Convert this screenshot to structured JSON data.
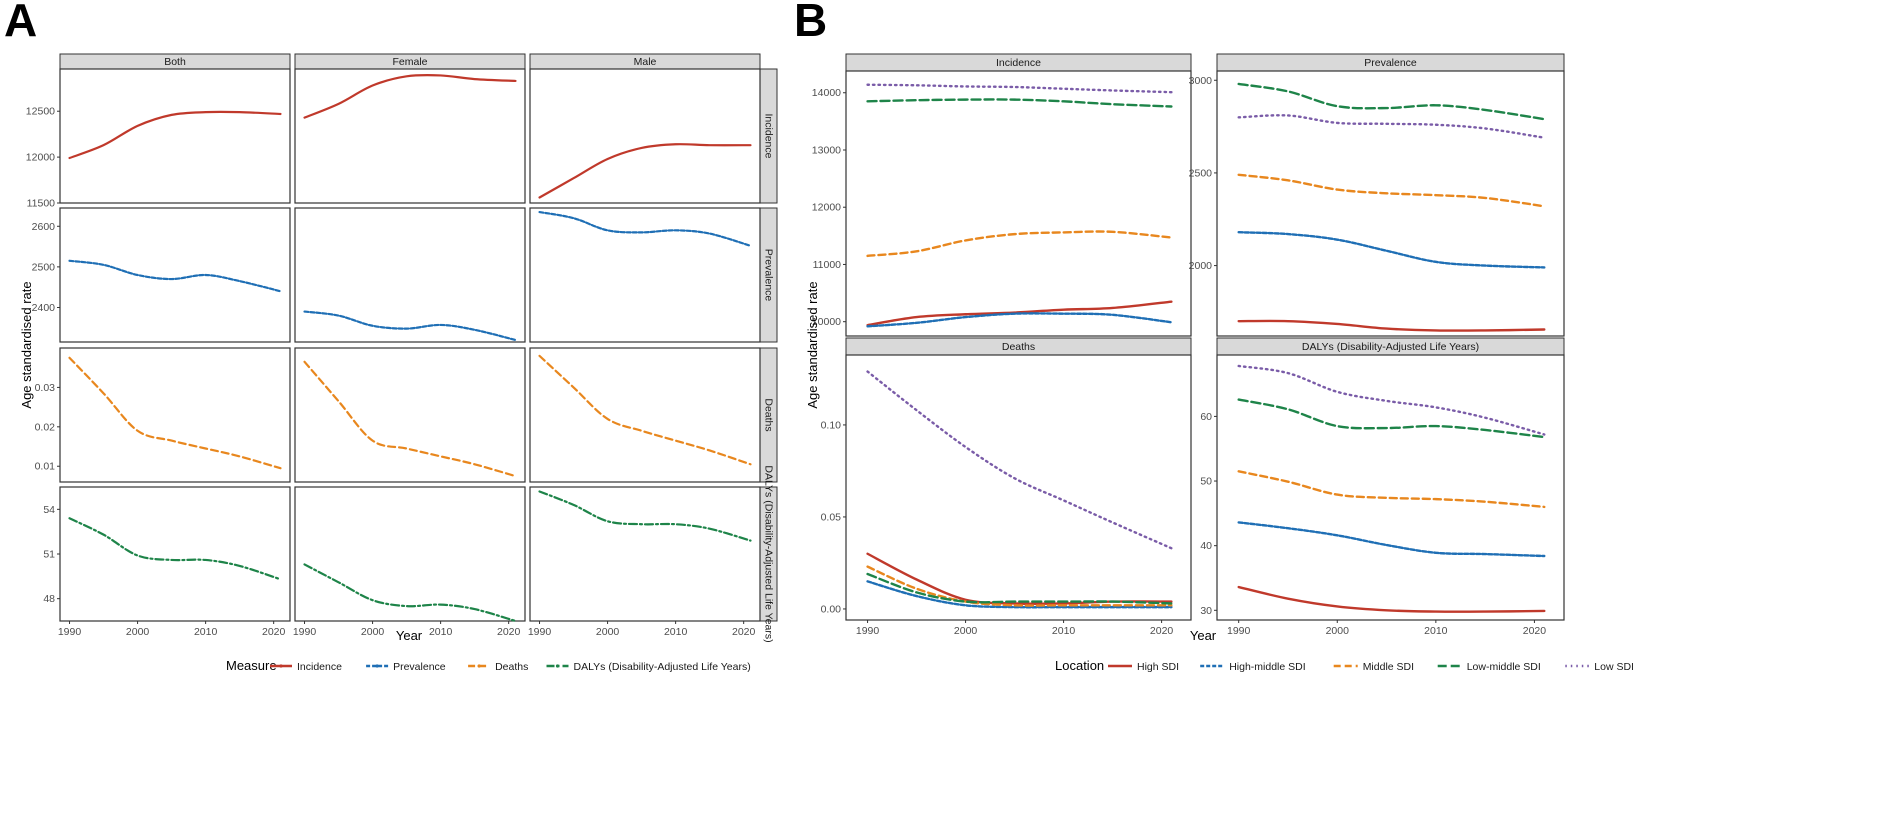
{
  "figure": {
    "label_a": "A",
    "label_b": "B"
  },
  "colors": {
    "incidence": "#c0392b",
    "prevalence": "#1f6fb5",
    "deaths": "#e8871e",
    "dalys": "#1e8449",
    "high_sdi": "#c0392b",
    "high_middle_sdi": "#1f6fb5",
    "middle_sdi": "#e8871e",
    "low_middle_sdi": "#1e8449",
    "low_sdi": "#7a5ca8"
  },
  "chart_data": [
    {
      "type": "line",
      "id": "A",
      "title": "A",
      "xlabel": "Year",
      "ylabel": "Age standardised rate",
      "x_ticks": [
        1990,
        2000,
        2010,
        2020
      ],
      "columns": [
        "Both",
        "Female",
        "Male"
      ],
      "rows": [
        "Incidence",
        "Prevalence",
        "Deaths",
        "DALYs (Disability-Adjusted Life Years)"
      ],
      "legend_title": "Measure",
      "legend": [
        {
          "key": "incidence",
          "label": "Incidence"
        },
        {
          "key": "prevalence",
          "label": "Prevalence"
        },
        {
          "key": "deaths",
          "label": "Deaths"
        },
        {
          "key": "dalys",
          "label": "DALYs (Disability-Adjusted Life Years)"
        }
      ],
      "x": [
        1990,
        1995,
        2000,
        2005,
        2010,
        2015,
        2021
      ],
      "panels": [
        {
          "row": "Incidence",
          "ylim": [
            11500,
            12960
          ],
          "yticks": [
            11500,
            12000,
            12500
          ],
          "series": [
            {
              "measure": "incidence",
              "column": "Both",
              "values": [
                11990,
                12130,
                12340,
                12460,
                12490,
                12490,
                12470
              ]
            },
            {
              "measure": "incidence",
              "column": "Female",
              "values": [
                12430,
                12580,
                12780,
                12880,
                12890,
                12850,
                12830
              ]
            },
            {
              "measure": "incidence",
              "column": "Male",
              "values": [
                11560,
                11770,
                11980,
                12100,
                12140,
                12130,
                12130
              ]
            }
          ]
        },
        {
          "row": "Prevalence",
          "ylim": [
            2315,
            2645
          ],
          "yticks": [
            2400,
            2500,
            2600
          ],
          "series": [
            {
              "measure": "prevalence",
              "column": "Both",
              "values": [
                2515,
                2505,
                2480,
                2470,
                2480,
                2465,
                2440
              ]
            },
            {
              "measure": "prevalence",
              "column": "Female",
              "values": [
                2390,
                2380,
                2355,
                2348,
                2357,
                2345,
                2320
              ]
            },
            {
              "measure": "prevalence",
              "column": "Male",
              "values": [
                2635,
                2620,
                2590,
                2585,
                2590,
                2582,
                2552
              ]
            }
          ]
        },
        {
          "row": "Deaths",
          "ylim": [
            0.006,
            0.04
          ],
          "yticks": [
            0.01,
            0.02,
            0.03
          ],
          "series": [
            {
              "measure": "deaths",
              "column": "Both",
              "values": [
                0.0375,
                0.0285,
                0.019,
                0.0165,
                0.0145,
                0.0125,
                0.0095
              ]
            },
            {
              "measure": "deaths",
              "column": "Female",
              "values": [
                0.0365,
                0.0265,
                0.0165,
                0.0145,
                0.0125,
                0.0105,
                0.0075
              ]
            },
            {
              "measure": "deaths",
              "column": "Male",
              "values": [
                0.038,
                0.03,
                0.022,
                0.019,
                0.0165,
                0.014,
                0.0105
              ]
            }
          ]
        },
        {
          "row": "DALYs (Disability-Adjusted Life Years)",
          "ylim": [
            46.5,
            55.5
          ],
          "yticks": [
            48,
            51,
            54
          ],
          "series": [
            {
              "measure": "dalys",
              "column": "Both",
              "values": [
                53.4,
                52.3,
                50.9,
                50.6,
                50.6,
                50.2,
                49.3
              ]
            },
            {
              "measure": "dalys",
              "column": "Female",
              "values": [
                50.3,
                49.1,
                47.9,
                47.5,
                47.6,
                47.3,
                46.5
              ]
            },
            {
              "measure": "dalys",
              "column": "Male",
              "values": [
                55.2,
                54.3,
                53.2,
                53.0,
                53.0,
                52.7,
                51.9
              ]
            }
          ]
        }
      ]
    },
    {
      "type": "line",
      "id": "B",
      "title": "B",
      "xlabel": "Year",
      "ylabel": "Age standardised rate",
      "x_ticks": [
        1990,
        2000,
        2010,
        2020
      ],
      "legend_title": "Location",
      "legend": [
        {
          "key": "high_sdi",
          "label": "High SDI"
        },
        {
          "key": "high_middle_sdi",
          "label": "High-middle SDI"
        },
        {
          "key": "middle_sdi",
          "label": "Middle SDI"
        },
        {
          "key": "low_middle_sdi",
          "label": "Low-middle SDI"
        },
        {
          "key": "low_sdi",
          "label": "Low SDI"
        }
      ],
      "x": [
        1990,
        1995,
        2000,
        2005,
        2010,
        2015,
        2021
      ],
      "panels": [
        {
          "title": "Incidence",
          "ylim": [
            9750,
            14380
          ],
          "yticks": [
            10000,
            11000,
            12000,
            13000,
            14000
          ],
          "series": [
            {
              "location": "high_sdi",
              "values": [
                9940,
                10080,
                10130,
                10160,
                10210,
                10240,
                10350
              ]
            },
            {
              "location": "high_middle_sdi",
              "values": [
                9920,
                9980,
                10080,
                10140,
                10140,
                10120,
                9990
              ]
            },
            {
              "location": "middle_sdi",
              "values": [
                11150,
                11230,
                11420,
                11530,
                11560,
                11570,
                11470
              ]
            },
            {
              "location": "low_middle_sdi",
              "values": [
                13850,
                13870,
                13880,
                13880,
                13850,
                13800,
                13760
              ]
            },
            {
              "location": "low_sdi",
              "values": [
                14140,
                14130,
                14110,
                14100,
                14070,
                14040,
                14010
              ]
            }
          ]
        },
        {
          "title": "Prevalence",
          "ylim": [
            1620,
            3050
          ],
          "yticks": [
            2000,
            2500,
            3000
          ],
          "series": [
            {
              "location": "high_sdi",
              "values": [
                1700,
                1700,
                1685,
                1660,
                1650,
                1650,
                1655
              ]
            },
            {
              "location": "high_middle_sdi",
              "values": [
                2180,
                2170,
                2140,
                2080,
                2020,
                2000,
                1990
              ]
            },
            {
              "location": "middle_sdi",
              "values": [
                2490,
                2460,
                2410,
                2390,
                2380,
                2365,
                2320
              ]
            },
            {
              "location": "low_middle_sdi",
              "values": [
                2980,
                2940,
                2860,
                2850,
                2865,
                2840,
                2790
              ]
            },
            {
              "location": "low_sdi",
              "values": [
                2800,
                2810,
                2770,
                2765,
                2760,
                2740,
                2690
              ]
            }
          ]
        },
        {
          "title": "Deaths",
          "ylim": [
            -0.006,
            0.138
          ],
          "yticks": [
            0.0,
            0.05,
            0.1
          ],
          "series": [
            {
              "location": "high_sdi",
              "values": [
                0.03,
                0.016,
                0.005,
                0.003,
                0.003,
                0.004,
                0.004
              ]
            },
            {
              "location": "high_middle_sdi",
              "values": [
                0.015,
                0.007,
                0.002,
                0.001,
                0.001,
                0.001,
                0.001
              ]
            },
            {
              "location": "middle_sdi",
              "values": [
                0.023,
                0.011,
                0.004,
                0.002,
                0.002,
                0.002,
                0.002
              ]
            },
            {
              "location": "low_middle_sdi",
              "values": [
                0.019,
                0.009,
                0.004,
                0.004,
                0.004,
                0.004,
                0.003
              ]
            },
            {
              "location": "low_sdi",
              "values": [
                0.129,
                0.108,
                0.088,
                0.071,
                0.059,
                0.047,
                0.033
              ]
            }
          ]
        },
        {
          "title": "DALYs (Disability-Adjusted Life Years)",
          "ylim": [
            28.5,
            69.5
          ],
          "yticks": [
            30,
            40,
            50,
            60
          ],
          "series": [
            {
              "location": "high_sdi",
              "values": [
                33.6,
                31.8,
                30.6,
                30.0,
                29.8,
                29.8,
                29.9
              ]
            },
            {
              "location": "high_middle_sdi",
              "values": [
                43.6,
                42.7,
                41.6,
                40.1,
                38.9,
                38.7,
                38.4
              ]
            },
            {
              "location": "middle_sdi",
              "values": [
                51.5,
                49.9,
                47.9,
                47.4,
                47.2,
                46.8,
                46.0
              ]
            },
            {
              "location": "low_middle_sdi",
              "values": [
                62.6,
                61.1,
                58.5,
                58.2,
                58.5,
                57.9,
                56.8
              ]
            },
            {
              "location": "low_sdi",
              "values": [
                67.8,
                66.7,
                63.8,
                62.4,
                61.4,
                59.8,
                57.2
              ]
            }
          ]
        }
      ]
    }
  ]
}
